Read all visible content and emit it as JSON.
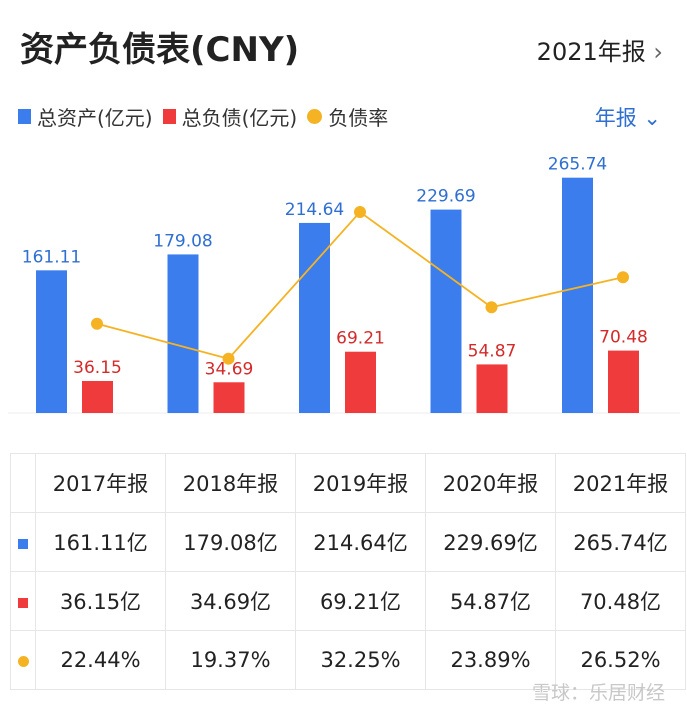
{
  "header": {
    "title": "资产负债表(CNY)",
    "period": "2021年报",
    "period_icon": "chevron-right-icon",
    "toggle": "年报",
    "toggle_icon": "chevron-down-icon"
  },
  "colors": {
    "assets": "#3b7ded",
    "liabilities": "#ef3b3b",
    "ratio": "#f5b324"
  },
  "chart_data": {
    "type": "bar",
    "categories": [
      "2017年报",
      "2018年报",
      "2019年报",
      "2020年报",
      "2021年报"
    ],
    "series": [
      {
        "name": "总资产(亿元)",
        "type": "bar",
        "values": [
          161.11,
          179.08,
          214.64,
          229.69,
          265.74
        ],
        "labels": [
          "161.11",
          "179.08",
          "214.64",
          "229.69",
          "265.74"
        ]
      },
      {
        "name": "总负债(亿元)",
        "type": "bar",
        "values": [
          36.15,
          34.69,
          69.21,
          54.87,
          70.48
        ],
        "labels": [
          "36.15",
          "34.69",
          "69.21",
          "54.87",
          "70.48"
        ]
      },
      {
        "name": "负债率",
        "type": "line",
        "values": [
          22.44,
          19.37,
          32.25,
          23.89,
          26.52
        ]
      }
    ],
    "ylim": [
      0,
      297
    ],
    "y2lim": [
      14.6,
      37.7
    ],
    "grid": false,
    "legend": "top-left"
  },
  "table": {
    "headers": [
      "2017年报",
      "2018年报",
      "2019年报",
      "2020年报",
      "2021年报"
    ],
    "rows": [
      {
        "icon": "blue-square-icon",
        "cells": [
          "161.11亿",
          "179.08亿",
          "214.64亿",
          "229.69亿",
          "265.74亿"
        ]
      },
      {
        "icon": "red-square-icon",
        "cells": [
          "36.15亿",
          "34.69亿",
          "69.21亿",
          "54.87亿",
          "70.48亿"
        ]
      },
      {
        "icon": "orange-dot-icon",
        "cells": [
          "22.44%",
          "19.37%",
          "32.25%",
          "23.89%",
          "26.52%"
        ]
      }
    ]
  },
  "watermark": "雪球：乐居财经"
}
